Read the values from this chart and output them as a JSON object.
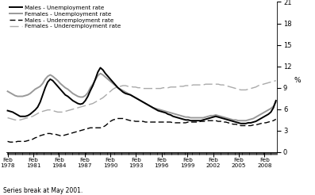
{
  "ylabel_right": "%",
  "ylim": [
    0,
    21
  ],
  "yticks": [
    0,
    3,
    6,
    9,
    12,
    15,
    18,
    21
  ],
  "note": "Series break at May 2001.",
  "legend": [
    {
      "label": "Males - Unemployment rate",
      "color": "#000000",
      "lw": 1.4,
      "ls": "solid"
    },
    {
      "label": "Females - Unemployment rate",
      "color": "#999999",
      "lw": 1.4,
      "ls": "solid"
    },
    {
      "label": "Males - Underemployment rate",
      "color": "#000000",
      "lw": 1.0,
      "ls": "dashed"
    },
    {
      "label": "Females - Underemployment rate",
      "color": "#aaaaaa",
      "lw": 1.0,
      "ls": "dashed"
    }
  ],
  "x_start_year": 1978.083,
  "x_end_year": 2009.42,
  "xtick_years": [
    1978,
    1981,
    1984,
    1987,
    1990,
    1993,
    1996,
    1999,
    2002,
    2005,
    2008
  ],
  "males_unemp": [
    5.8,
    5.7,
    5.6,
    5.4,
    5.2,
    5.0,
    5.0,
    5.0,
    5.1,
    5.3,
    5.6,
    5.9,
    6.3,
    7.0,
    8.0,
    9.0,
    9.8,
    10.2,
    10.0,
    9.6,
    9.2,
    8.8,
    8.4,
    8.0,
    7.8,
    7.5,
    7.2,
    7.0,
    6.8,
    6.7,
    6.8,
    7.2,
    7.8,
    8.6,
    9.3,
    10.2,
    11.2,
    11.8,
    11.5,
    11.0,
    10.6,
    10.2,
    9.8,
    9.4,
    9.0,
    8.7,
    8.4,
    8.2,
    8.1,
    8.0,
    7.8,
    7.6,
    7.4,
    7.2,
    7.0,
    6.8,
    6.6,
    6.4,
    6.2,
    6.0,
    5.8,
    5.7,
    5.6,
    5.5,
    5.3,
    5.2,
    5.0,
    4.9,
    4.8,
    4.7,
    4.6,
    4.5,
    4.5,
    4.4,
    4.4,
    4.4,
    4.4,
    4.4,
    4.5,
    4.6,
    4.7,
    4.8,
    4.9,
    5.0,
    4.9,
    4.8,
    4.7,
    4.6,
    4.5,
    4.4,
    4.3,
    4.2,
    4.1,
    4.0,
    4.0,
    4.0,
    4.1,
    4.1,
    4.2,
    4.3,
    4.5,
    4.7,
    4.9,
    5.1,
    5.3,
    5.6,
    6.2,
    7.2
  ],
  "females_unemp": [
    8.5,
    8.3,
    8.1,
    7.9,
    7.8,
    7.8,
    7.8,
    7.9,
    8.0,
    8.2,
    8.5,
    8.8,
    9.0,
    9.2,
    9.6,
    10.2,
    10.6,
    10.8,
    10.6,
    10.3,
    10.0,
    9.6,
    9.3,
    9.0,
    8.8,
    8.5,
    8.2,
    8.0,
    7.8,
    7.7,
    7.7,
    7.9,
    8.3,
    9.0,
    9.5,
    10.1,
    10.7,
    11.0,
    10.8,
    10.5,
    10.2,
    9.9,
    9.6,
    9.3,
    9.0,
    8.8,
    8.6,
    8.4,
    8.2,
    8.0,
    7.8,
    7.6,
    7.4,
    7.2,
    7.0,
    6.8,
    6.6,
    6.4,
    6.2,
    6.1,
    6.0,
    5.9,
    5.8,
    5.7,
    5.6,
    5.5,
    5.4,
    5.3,
    5.2,
    5.1,
    5.0,
    4.9,
    4.9,
    4.8,
    4.8,
    4.8,
    4.8,
    4.8,
    4.8,
    4.9,
    5.0,
    5.1,
    5.1,
    5.2,
    5.1,
    5.0,
    4.9,
    4.8,
    4.7,
    4.6,
    4.5,
    4.5,
    4.4,
    4.4,
    4.4,
    4.4,
    4.5,
    4.6,
    4.7,
    4.9,
    5.1,
    5.3,
    5.5,
    5.7,
    5.9,
    6.1,
    6.4,
    7.0
  ],
  "males_underemp": [
    1.5,
    1.4,
    1.4,
    1.4,
    1.5,
    1.5,
    1.5,
    1.5,
    1.6,
    1.7,
    1.8,
    2.0,
    2.1,
    2.3,
    2.4,
    2.5,
    2.6,
    2.6,
    2.5,
    2.5,
    2.4,
    2.3,
    2.3,
    2.4,
    2.5,
    2.6,
    2.7,
    2.8,
    2.9,
    3.0,
    3.1,
    3.2,
    3.3,
    3.4,
    3.4,
    3.4,
    3.4,
    3.4,
    3.5,
    3.7,
    4.0,
    4.3,
    4.5,
    4.6,
    4.7,
    4.7,
    4.7,
    4.6,
    4.5,
    4.4,
    4.4,
    4.3,
    4.3,
    4.3,
    4.3,
    4.2,
    4.2,
    4.2,
    4.2,
    4.2,
    4.2,
    4.2,
    4.2,
    4.2,
    4.2,
    4.2,
    4.1,
    4.1,
    4.1,
    4.1,
    4.1,
    4.1,
    4.2,
    4.2,
    4.2,
    4.2,
    4.2,
    4.3,
    4.3,
    4.3,
    4.4,
    4.4,
    4.4,
    4.4,
    4.3,
    4.3,
    4.2,
    4.2,
    4.1,
    4.0,
    3.9,
    3.9,
    3.8,
    3.7,
    3.7,
    3.7,
    3.7,
    3.7,
    3.8,
    3.8,
    3.9,
    4.0,
    4.1,
    4.1,
    4.2,
    4.3,
    4.4,
    4.6
  ],
  "females_underemp": [
    4.8,
    4.7,
    4.6,
    4.5,
    4.5,
    4.5,
    4.6,
    4.7,
    4.8,
    4.9,
    5.0,
    5.2,
    5.4,
    5.6,
    5.7,
    5.8,
    5.9,
    5.9,
    5.8,
    5.7,
    5.6,
    5.6,
    5.6,
    5.7,
    5.8,
    5.9,
    6.0,
    6.1,
    6.2,
    6.3,
    6.4,
    6.5,
    6.6,
    6.7,
    6.8,
    7.0,
    7.2,
    7.4,
    7.6,
    7.9,
    8.2,
    8.5,
    8.8,
    9.0,
    9.1,
    9.2,
    9.3,
    9.3,
    9.2,
    9.2,
    9.1,
    9.1,
    9.0,
    9.0,
    8.9,
    8.9,
    8.9,
    8.9,
    8.9,
    8.9,
    8.9,
    8.9,
    9.0,
    9.0,
    9.0,
    9.1,
    9.1,
    9.1,
    9.2,
    9.2,
    9.2,
    9.3,
    9.3,
    9.3,
    9.4,
    9.4,
    9.4,
    9.4,
    9.4,
    9.5,
    9.5,
    9.5,
    9.5,
    9.5,
    9.5,
    9.4,
    9.4,
    9.3,
    9.2,
    9.1,
    9.0,
    8.9,
    8.8,
    8.7,
    8.7,
    8.7,
    8.8,
    8.9,
    9.0,
    9.1,
    9.3,
    9.4,
    9.5,
    9.6,
    9.7,
    9.8,
    9.9,
    10.0
  ]
}
